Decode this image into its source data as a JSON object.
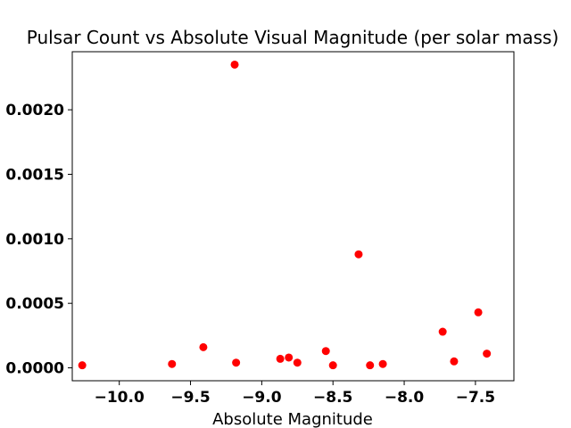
{
  "chart_data": {
    "type": "scatter",
    "title": "Pulsar Count vs Absolute Visual Magnitude (per solar mass)",
    "xlabel": "Absolute Magnitude",
    "ylabel": "",
    "xlim": [
      -10.33,
      -7.23
    ],
    "ylim": [
      -0.0001,
      0.00245
    ],
    "xticks": [
      -10.0,
      -9.5,
      -9.0,
      -8.5,
      -8.0,
      -7.5
    ],
    "xtick_labels": [
      "−10.0",
      "−9.5",
      "−9.0",
      "−8.5",
      "−8.0",
      "−7.5"
    ],
    "yticks": [
      0.0,
      0.0005,
      0.001,
      0.0015,
      0.002
    ],
    "ytick_labels": [
      "0.0000",
      "0.0005",
      "0.0010",
      "0.0015",
      "0.0020"
    ],
    "grid": false,
    "marker_color": "#ff0000",
    "points": [
      {
        "x": -10.26,
        "y": 2e-05
      },
      {
        "x": -9.63,
        "y": 3e-05
      },
      {
        "x": -9.41,
        "y": 0.00016
      },
      {
        "x": -9.19,
        "y": 0.00235
      },
      {
        "x": -9.18,
        "y": 4e-05
      },
      {
        "x": -8.87,
        "y": 7e-05
      },
      {
        "x": -8.81,
        "y": 8e-05
      },
      {
        "x": -8.75,
        "y": 4e-05
      },
      {
        "x": -8.55,
        "y": 0.00013
      },
      {
        "x": -8.5,
        "y": 2e-05
      },
      {
        "x": -8.32,
        "y": 0.00088
      },
      {
        "x": -8.24,
        "y": 2e-05
      },
      {
        "x": -8.15,
        "y": 3e-05
      },
      {
        "x": -7.73,
        "y": 0.00028
      },
      {
        "x": -7.65,
        "y": 5e-05
      },
      {
        "x": -7.48,
        "y": 0.00043
      },
      {
        "x": -7.42,
        "y": 0.00011
      }
    ]
  }
}
